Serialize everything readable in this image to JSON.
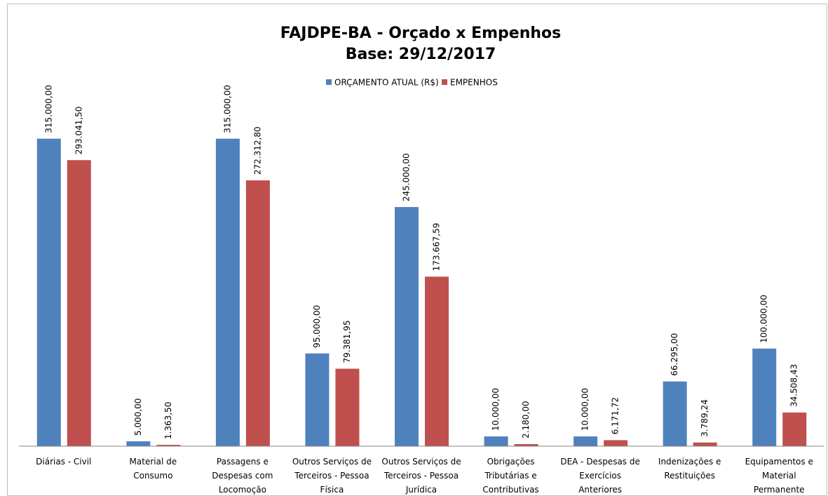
{
  "chart_data": {
    "type": "bar",
    "title": "FAJDPE-BA - Orçado x Empenhos",
    "subtitle": "Base: 29/12/2017",
    "categories": [
      "Diárias - Civil",
      "Material de Consumo",
      "Passagens e Despesas com Locomoção",
      "Outros Serviços de Terceiros - Pessoa Física",
      "Outros Serviços de Terceiros - Pessoa Jurídica",
      "Obrigações Tributárias e Contributivas",
      "DEA - Despesas de Exercícios Anteriores",
      "Indenizações e Restituições",
      "Equipamentos e Material Permanente"
    ],
    "series": [
      {
        "name": "ORÇAMENTO ATUAL (R$)",
        "color": "#4f81bd",
        "values": [
          315000,
          5000,
          315000,
          95000,
          245000,
          10000,
          10000,
          66295,
          100000
        ],
        "value_labels": [
          "315.000,00",
          "5.000,00",
          "315.000,00",
          "95.000,00",
          "245.000,00",
          "10.000,00",
          "10.000,00",
          "66.295,00",
          "100.000,00"
        ]
      },
      {
        "name": "EMPENHOS",
        "color": "#c0504d",
        "values": [
          293041.5,
          1363.5,
          272312.8,
          79381.95,
          173667.59,
          2180,
          6171.72,
          3789.24,
          34508.43
        ],
        "value_labels": [
          "293.041,50",
          "1.363,50",
          "272.312,80",
          "79.381,95",
          "173.667,59",
          "2.180,00",
          "6.171,72",
          "3.789,24",
          "34.508,43"
        ]
      }
    ],
    "ylim": [
      0,
      350000
    ],
    "legend": "top"
  }
}
